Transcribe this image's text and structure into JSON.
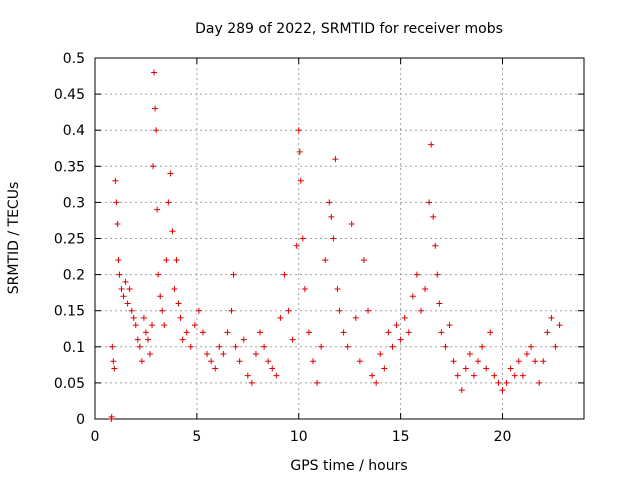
{
  "chart_data": {
    "type": "scatter",
    "title": "Day 289 of 2022, SRMTID for receiver mobs",
    "xlabel": "GPS time / hours",
    "ylabel": "SRMTID / TECUs",
    "xlim": [
      0,
      24
    ],
    "ylim": [
      0,
      0.5
    ],
    "x_ticks": [
      0,
      5,
      10,
      15,
      20
    ],
    "y_ticks": [
      0,
      0.05,
      0.1,
      0.15,
      0.2,
      0.25,
      0.3,
      0.35,
      0.4,
      0.45,
      0.5
    ],
    "x_tick_labels": [
      "0",
      "5",
      "10",
      "15",
      "20"
    ],
    "y_tick_labels": [
      "0",
      "0.05",
      "0.1",
      "0.15",
      "0.2",
      "0.25",
      "0.3",
      "0.35",
      "0.4",
      "0.45",
      "0.5"
    ],
    "grid": true,
    "legend": "none",
    "marker": "+",
    "series_color": "#e00000",
    "series": [
      {
        "points": [
          [
            0.8,
            0.0
          ],
          [
            0.82,
            0.003
          ],
          [
            0.85,
            0.1
          ],
          [
            0.9,
            0.08
          ],
          [
            0.95,
            0.07
          ],
          [
            1.0,
            0.33
          ],
          [
            1.05,
            0.3
          ],
          [
            1.1,
            0.27
          ],
          [
            1.15,
            0.22
          ],
          [
            1.2,
            0.2
          ],
          [
            1.3,
            0.18
          ],
          [
            1.4,
            0.17
          ],
          [
            1.5,
            0.19
          ],
          [
            1.6,
            0.16
          ],
          [
            1.7,
            0.18
          ],
          [
            1.8,
            0.15
          ],
          [
            1.9,
            0.14
          ],
          [
            2.0,
            0.13
          ],
          [
            2.1,
            0.11
          ],
          [
            2.2,
            0.1
          ],
          [
            2.3,
            0.08
          ],
          [
            2.4,
            0.14
          ],
          [
            2.5,
            0.12
          ],
          [
            2.6,
            0.11
          ],
          [
            2.7,
            0.09
          ],
          [
            2.8,
            0.13
          ],
          [
            2.85,
            0.35
          ],
          [
            2.9,
            0.48
          ],
          [
            2.95,
            0.43
          ],
          [
            3.0,
            0.4
          ],
          [
            3.05,
            0.29
          ],
          [
            3.1,
            0.2
          ],
          [
            3.2,
            0.17
          ],
          [
            3.3,
            0.15
          ],
          [
            3.4,
            0.13
          ],
          [
            3.5,
            0.22
          ],
          [
            3.6,
            0.3
          ],
          [
            3.7,
            0.34
          ],
          [
            3.8,
            0.26
          ],
          [
            3.9,
            0.18
          ],
          [
            4.0,
            0.22
          ],
          [
            4.1,
            0.16
          ],
          [
            4.2,
            0.14
          ],
          [
            4.3,
            0.11
          ],
          [
            4.5,
            0.12
          ],
          [
            4.7,
            0.1
          ],
          [
            4.9,
            0.13
          ],
          [
            5.1,
            0.15
          ],
          [
            5.3,
            0.12
          ],
          [
            5.5,
            0.09
          ],
          [
            5.7,
            0.08
          ],
          [
            5.9,
            0.07
          ],
          [
            6.1,
            0.1
          ],
          [
            6.3,
            0.09
          ],
          [
            6.5,
            0.12
          ],
          [
            6.7,
            0.15
          ],
          [
            6.8,
            0.2
          ],
          [
            6.9,
            0.1
          ],
          [
            7.1,
            0.08
          ],
          [
            7.3,
            0.11
          ],
          [
            7.5,
            0.06
          ],
          [
            7.7,
            0.05
          ],
          [
            7.9,
            0.09
          ],
          [
            8.1,
            0.12
          ],
          [
            8.3,
            0.1
          ],
          [
            8.5,
            0.08
          ],
          [
            8.7,
            0.07
          ],
          [
            8.9,
            0.06
          ],
          [
            9.1,
            0.14
          ],
          [
            9.3,
            0.2
          ],
          [
            9.5,
            0.15
          ],
          [
            9.7,
            0.11
          ],
          [
            9.9,
            0.24
          ],
          [
            10.0,
            0.4
          ],
          [
            10.05,
            0.37
          ],
          [
            10.1,
            0.33
          ],
          [
            10.2,
            0.25
          ],
          [
            10.3,
            0.18
          ],
          [
            10.5,
            0.12
          ],
          [
            10.7,
            0.08
          ],
          [
            10.9,
            0.05
          ],
          [
            11.1,
            0.1
          ],
          [
            11.3,
            0.22
          ],
          [
            11.5,
            0.3
          ],
          [
            11.6,
            0.28
          ],
          [
            11.7,
            0.25
          ],
          [
            11.8,
            0.36
          ],
          [
            11.9,
            0.18
          ],
          [
            12.0,
            0.15
          ],
          [
            12.2,
            0.12
          ],
          [
            12.4,
            0.1
          ],
          [
            12.6,
            0.27
          ],
          [
            12.8,
            0.14
          ],
          [
            13.0,
            0.08
          ],
          [
            13.2,
            0.22
          ],
          [
            13.4,
            0.15
          ],
          [
            13.6,
            0.06
          ],
          [
            13.8,
            0.05
          ],
          [
            14.0,
            0.09
          ],
          [
            14.2,
            0.07
          ],
          [
            14.4,
            0.12
          ],
          [
            14.6,
            0.1
          ],
          [
            14.8,
            0.13
          ],
          [
            15.0,
            0.11
          ],
          [
            15.2,
            0.14
          ],
          [
            15.4,
            0.12
          ],
          [
            15.6,
            0.17
          ],
          [
            15.8,
            0.2
          ],
          [
            16.0,
            0.15
          ],
          [
            16.2,
            0.18
          ],
          [
            16.4,
            0.3
          ],
          [
            16.5,
            0.38
          ],
          [
            16.6,
            0.28
          ],
          [
            16.7,
            0.24
          ],
          [
            16.8,
            0.2
          ],
          [
            16.9,
            0.16
          ],
          [
            17.0,
            0.12
          ],
          [
            17.2,
            0.1
          ],
          [
            17.4,
            0.13
          ],
          [
            17.6,
            0.08
          ],
          [
            17.8,
            0.06
          ],
          [
            18.0,
            0.04
          ],
          [
            18.2,
            0.07
          ],
          [
            18.4,
            0.09
          ],
          [
            18.6,
            0.06
          ],
          [
            18.8,
            0.08
          ],
          [
            19.0,
            0.1
          ],
          [
            19.2,
            0.07
          ],
          [
            19.4,
            0.12
          ],
          [
            19.6,
            0.06
          ],
          [
            19.8,
            0.05
          ],
          [
            20.0,
            0.04
          ],
          [
            20.2,
            0.05
          ],
          [
            20.4,
            0.07
          ],
          [
            20.6,
            0.06
          ],
          [
            20.8,
            0.08
          ],
          [
            21.0,
            0.06
          ],
          [
            21.2,
            0.09
          ],
          [
            21.4,
            0.1
          ],
          [
            21.6,
            0.08
          ],
          [
            21.8,
            0.05
          ],
          [
            22.0,
            0.08
          ],
          [
            22.2,
            0.12
          ],
          [
            22.4,
            0.14
          ],
          [
            22.6,
            0.1
          ],
          [
            22.8,
            0.13
          ]
        ]
      }
    ]
  }
}
